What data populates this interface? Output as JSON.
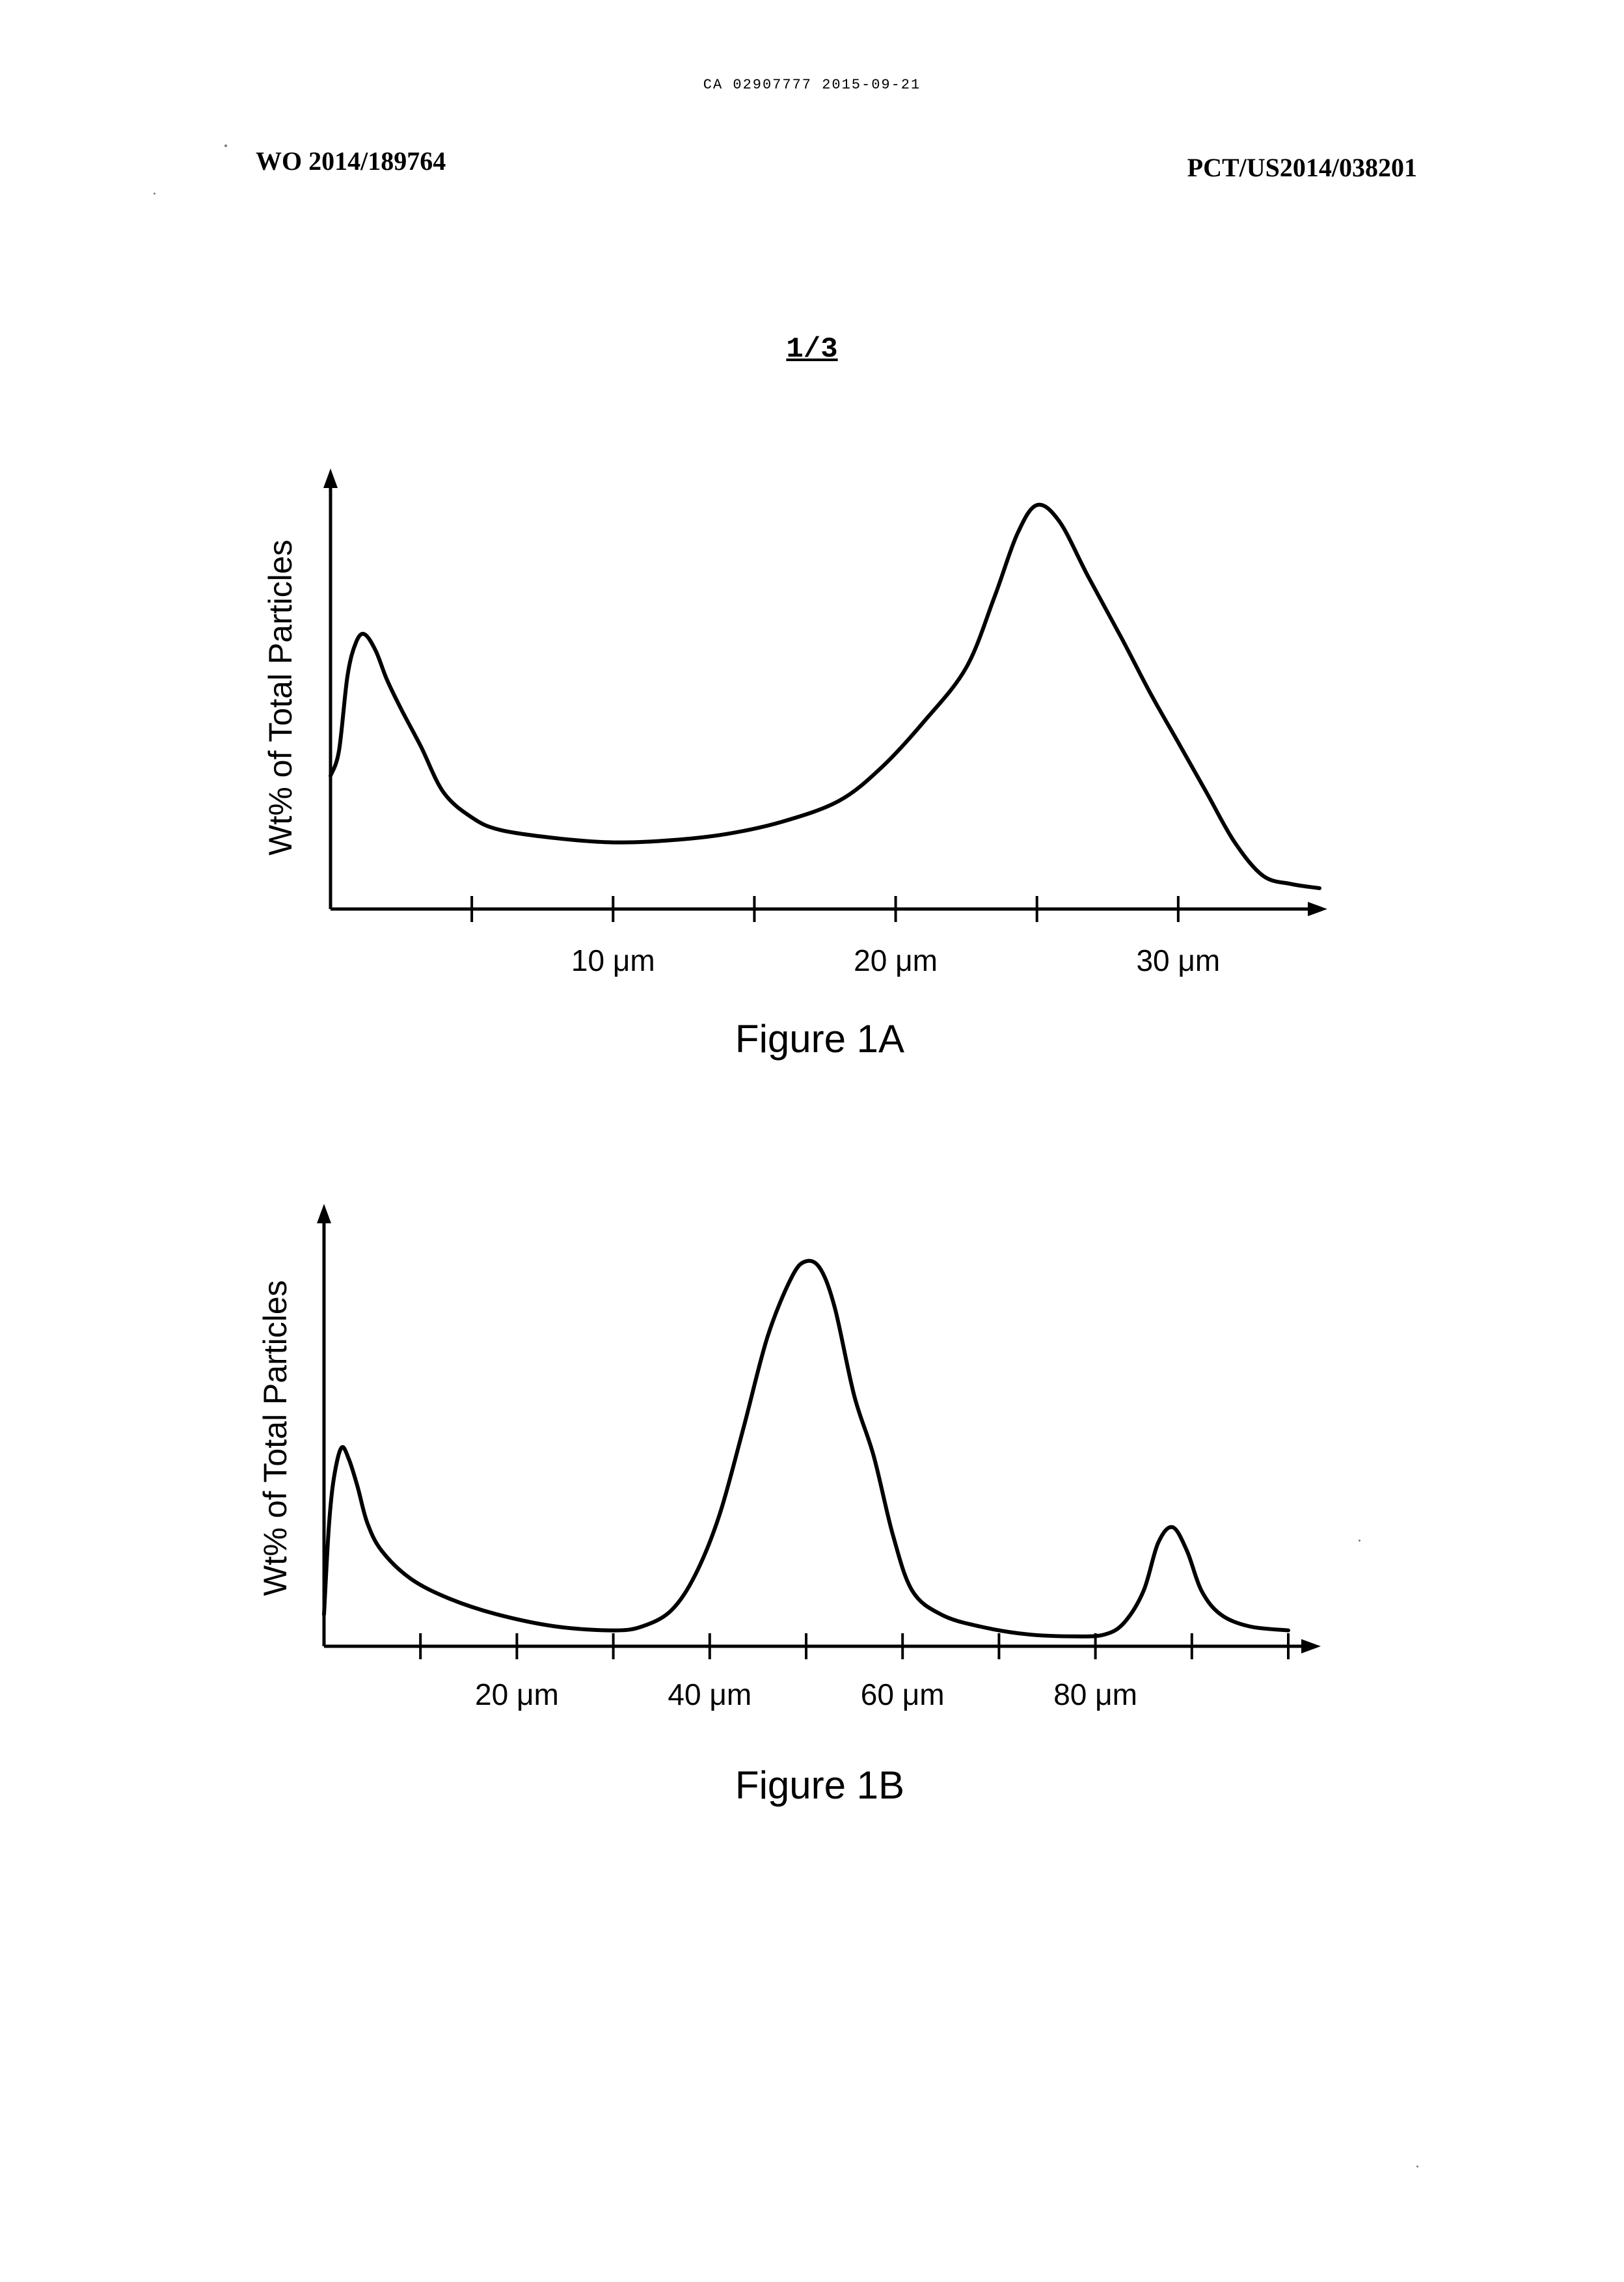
{
  "header": {
    "stamp": "CA 02907777 2015-09-21",
    "pub_number": "WO 2014/189764",
    "app_number": "PCT/US2014/038201",
    "sheet": "1/3"
  },
  "chart_data": [
    {
      "type": "line",
      "title": "Figure 1A",
      "xlabel": "",
      "ylabel": "Wt% of Total Particles",
      "x_unit": "μm",
      "xlim": [
        0,
        35
      ],
      "ylim": [
        0,
        100
      ],
      "x_ticks": [
        5,
        10,
        15,
        20,
        25,
        30
      ],
      "x_tick_labels": [
        {
          "x": 10,
          "label": "10 μm"
        },
        {
          "x": 20,
          "label": "20 μm"
        },
        {
          "x": 30,
          "label": "30 μm"
        }
      ],
      "series": [
        {
          "x": [
            0,
            0.3,
            0.6,
            0.9,
            1.2,
            1.6,
            2.0,
            2.5,
            3.2,
            4.0,
            5.0,
            6.0,
            8.0,
            10.0,
            12.0,
            14.0,
            16.0,
            18.0,
            19.5,
            21.0,
            22.5,
            23.5,
            24.3,
            25.0,
            25.8,
            26.8,
            28.0,
            29.0,
            30.0,
            31.0,
            32.0,
            33.0,
            34.0,
            35.0
          ],
          "y": [
            32,
            38,
            56,
            64,
            66,
            62,
            55,
            48,
            39,
            28,
            22,
            19,
            17,
            16,
            16.5,
            18,
            21,
            26,
            34,
            45,
            58,
            75,
            90,
            97,
            93,
            80,
            65,
            52,
            40,
            28,
            16,
            8,
            6,
            5
          ]
        }
      ]
    },
    {
      "type": "line",
      "title": "Figure 1B",
      "xlabel": "",
      "ylabel": "Wt% of Total Particles",
      "x_unit": "μm",
      "xlim": [
        0,
        100
      ],
      "ylim": [
        0,
        100
      ],
      "x_ticks": [
        10,
        20,
        30,
        40,
        50,
        60,
        70,
        80,
        90,
        100
      ],
      "x_tick_labels": [
        {
          "x": 20,
          "label": "20 μm"
        },
        {
          "x": 40,
          "label": "40 μm"
        },
        {
          "x": 60,
          "label": "60 μm"
        },
        {
          "x": 80,
          "label": "80 μm"
        }
      ],
      "series": [
        {
          "x": [
            0,
            0.5,
            1.0,
            1.8,
            2.6,
            3.5,
            4.5,
            6.0,
            9.0,
            13.0,
            18.0,
            24.0,
            30.0,
            33.0,
            36.0,
            38.5,
            41.0,
            43.5,
            46.0,
            48.5,
            50.0,
            51.5,
            53.0,
            55.0,
            57.0,
            59.0,
            61.0,
            64.0,
            68.0,
            73.0,
            78.0,
            81.0,
            83.0,
            85.0,
            86.5,
            88.0,
            89.5,
            91.0,
            93.0,
            96.0,
            100.0
          ],
          "y": [
            8,
            30,
            42,
            50,
            47,
            40,
            31,
            24,
            17,
            12,
            8,
            5,
            4,
            5,
            9,
            18,
            33,
            55,
            78,
            93,
            97,
            95,
            85,
            63,
            48,
            28,
            14,
            8,
            5,
            3,
            2.5,
            3,
            6,
            14,
            26,
            30,
            24,
            14,
            8,
            5,
            4
          ]
        }
      ]
    }
  ]
}
